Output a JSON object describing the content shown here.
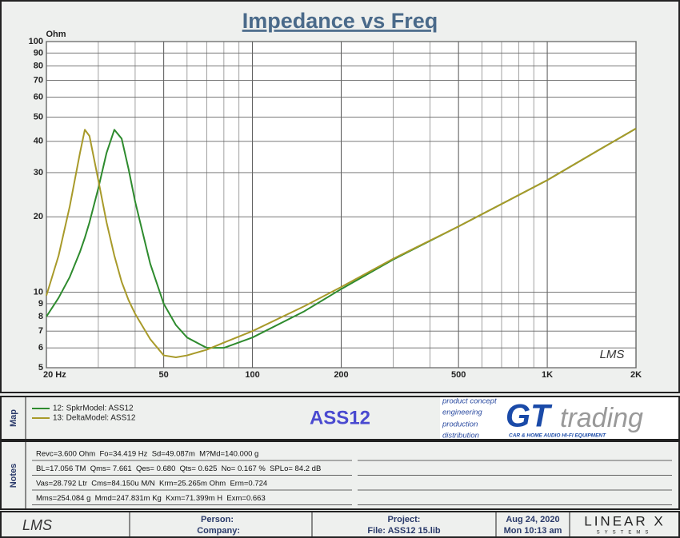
{
  "chart_data": {
    "type": "line",
    "title": "Impedance vs Freq",
    "y_unit": "Ohm",
    "watermark": "LMS",
    "xscale": "log",
    "yscale": "log",
    "grid": true,
    "x": [
      20,
      22,
      24,
      26,
      27,
      28,
      30,
      32,
      34,
      36,
      38,
      40,
      45,
      50,
      55,
      60,
      70,
      80,
      100,
      150,
      200,
      300,
      500,
      1000,
      1500,
      2000
    ],
    "series": [
      {
        "name": "12: SpkrModel: ASS12",
        "color": "#2e8b2e",
        "values": [
          8.0,
          9.5,
          11.5,
          14.5,
          16.5,
          19,
          26,
          36,
          44.5,
          41,
          31,
          23,
          13,
          9,
          7.4,
          6.6,
          6.0,
          6.0,
          6.6,
          8.4,
          10.3,
          13.5,
          18.3,
          28,
          37,
          45
        ]
      },
      {
        "name": "13: DeltaModel: ASS12",
        "color": "#a89a2a",
        "values": [
          9.7,
          14,
          22,
          36,
          44.5,
          42,
          28,
          19,
          14,
          11,
          9.3,
          8.2,
          6.5,
          5.6,
          5.5,
          5.6,
          5.9,
          6.3,
          7.0,
          8.8,
          10.5,
          13.6,
          18.3,
          28,
          37,
          45
        ]
      }
    ],
    "xlim": [
      20,
      2000
    ],
    "ylim": [
      5,
      100
    ],
    "xticks": [
      {
        "value": 20,
        "label": "20 Hz"
      },
      50,
      100,
      200,
      500,
      {
        "value": 1000,
        "label": "1K"
      },
      {
        "value": 2000,
        "label": "2K"
      }
    ],
    "xminorticks": [
      30,
      40,
      60,
      70,
      80,
      90,
      300,
      400,
      600,
      700,
      800,
      900
    ],
    "yticks": [
      5,
      6,
      7,
      8,
      9,
      10,
      20,
      30,
      40,
      50,
      60,
      70,
      80,
      90,
      100
    ]
  },
  "map_panel": {
    "label": "Map",
    "center_text": "ASS12",
    "logo": {
      "lines": [
        "product concept",
        "engineering",
        "production",
        "distribution"
      ],
      "brand": "GT",
      "brand_word": "trading",
      "tagline": "CAR & HOME AUDIO HI-FI EQUIPMENT"
    }
  },
  "notes_panel": {
    "label": "Notes",
    "lines": [
      "Revc=3.600 Ohm  Fo=34.419 Hz  Sd=49.087m  M?Md=140.000 g",
      "BL=17.056 TM  Qms= 7.661  Qes= 0.680  Qts= 0.625  No= 0.167 %  SPLo= 84.2 dB",
      "Vas=28.792 Ltr  Cms=84.150u M/N  Krm=25.265m Ohm  Erm=0.724",
      "Mms=254.084 g  Mmd=247.831m Kg  Kxm=71.399m H  Exm=0.663"
    ]
  },
  "footer": {
    "logo": "LMS",
    "person": "Person:",
    "company": "Company:",
    "project": "Project:",
    "file": "File: ASS12 15.lib",
    "date": "Aug 24, 2020",
    "time": "Mon 10:13 am",
    "brand": "LINEAR X",
    "brand_sub": "SYSTEMS"
  }
}
